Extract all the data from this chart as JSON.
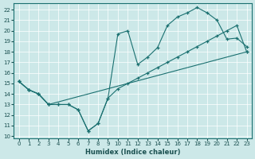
{
  "xlabel": "Humidex (Indice chaleur)",
  "bg_color": "#cce8e8",
  "line_color": "#1a7070",
  "xlim": [
    -0.5,
    23.5
  ],
  "ylim": [
    9.8,
    22.6
  ],
  "xticks": [
    0,
    1,
    2,
    3,
    4,
    5,
    6,
    7,
    8,
    9,
    10,
    11,
    12,
    13,
    14,
    15,
    16,
    17,
    18,
    19,
    20,
    21,
    22,
    23
  ],
  "yticks": [
    10,
    11,
    12,
    13,
    14,
    15,
    16,
    17,
    18,
    19,
    20,
    21,
    22
  ],
  "line1_x": [
    0,
    1,
    2,
    3,
    4,
    5,
    6,
    7,
    8,
    9,
    10,
    11,
    12,
    13,
    14,
    15,
    16,
    17,
    18,
    19,
    20,
    21,
    22,
    23
  ],
  "line1_y": [
    15.2,
    14.4,
    14.0,
    13.0,
    13.0,
    13.0,
    12.5,
    10.5,
    11.2,
    13.6,
    14.5,
    15.0,
    15.5,
    16.0,
    16.5,
    17.0,
    17.5,
    18.0,
    18.5,
    19.0,
    19.5,
    20.0,
    20.5,
    18.0
  ],
  "line2_x": [
    0,
    1,
    2,
    3,
    4,
    5,
    6,
    7,
    8,
    9,
    10,
    11,
    12,
    13,
    14,
    15,
    16,
    17,
    18,
    19,
    20,
    21,
    22,
    23
  ],
  "line2_y": [
    15.2,
    14.4,
    14.0,
    13.0,
    13.0,
    13.0,
    12.5,
    10.5,
    11.2,
    13.6,
    19.7,
    20.0,
    16.8,
    17.5,
    18.4,
    20.5,
    21.3,
    21.7,
    22.2,
    21.7,
    21.0,
    19.2,
    19.3,
    18.5
  ],
  "line3_x": [
    0,
    1,
    2,
    3,
    23
  ],
  "line3_y": [
    15.2,
    14.4,
    14.0,
    13.0,
    18.0
  ]
}
